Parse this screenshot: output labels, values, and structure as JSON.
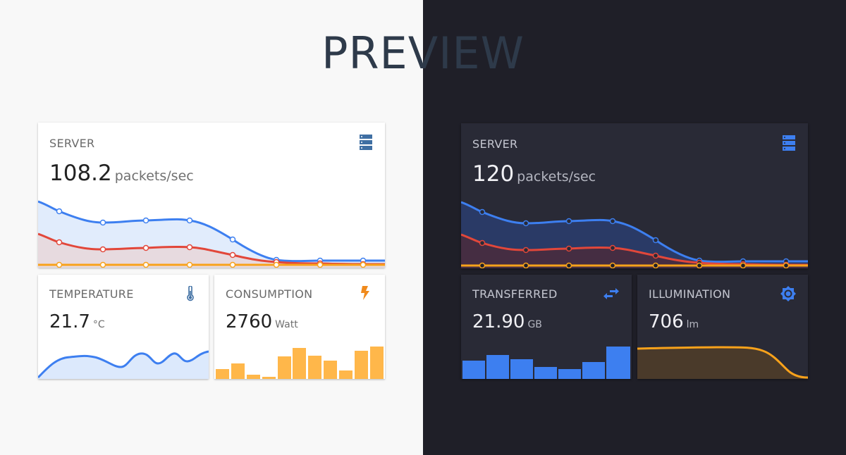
{
  "header": {
    "title": "PREVIEW"
  },
  "colors": {
    "light_bg": "#f8f8f8",
    "dark_bg": "#1f1f28",
    "light_card": "#ffffff",
    "dark_card": "#292a36",
    "blue": "#3d7ff0",
    "red": "#e2473a",
    "orange": "#f8a21b",
    "amber_bar": "#ffb74a"
  },
  "light_theme": {
    "server": {
      "title": "SERVER",
      "value": "108.2",
      "unit": "packets/sec",
      "icon": "server-icon"
    },
    "temperature": {
      "title": "TEMPERATURE",
      "value": "21.7",
      "unit": "°C",
      "icon": "thermometer-icon"
    },
    "consumption": {
      "title": "CONSUMPTION",
      "value": "2760",
      "unit": "Watt",
      "icon": "lightning-icon"
    }
  },
  "dark_theme": {
    "server": {
      "title": "SERVER",
      "value": "120",
      "unit": "packets/sec",
      "icon": "server-icon"
    },
    "transferred": {
      "title": "TRANSFERRED",
      "value": "21.90",
      "unit": "GB",
      "icon": "transfer-arrows-icon"
    },
    "illumination": {
      "title": "ILLUMINATION",
      "value": "706",
      "unit": "lm",
      "icon": "brightness-icon"
    }
  }
}
